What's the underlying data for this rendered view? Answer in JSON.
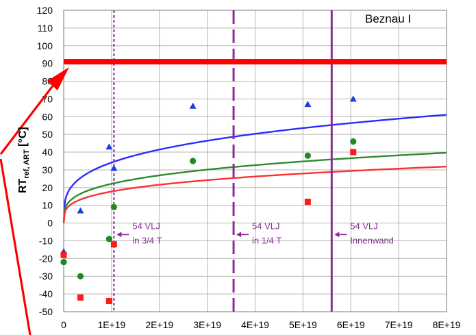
{
  "chart_data": {
    "type": "scatter",
    "title": "",
    "plant_label": "Beznau I",
    "ylabel_main": "RT",
    "ylabel_sub": "ref, ART",
    "ylabel_unit": " [°C]",
    "xlabel": "",
    "xlim": [
      0,
      8e+19
    ],
    "ylim": [
      -50,
      120
    ],
    "grid": true,
    "x_ticks": [
      "0",
      "1E+19",
      "2E+19",
      "3E+19",
      "4E+19",
      "5E+19",
      "6E+19",
      "7E+19",
      "8E+19"
    ],
    "y_ticks": [
      120,
      110,
      100,
      90,
      80,
      70,
      60,
      50,
      40,
      30,
      20,
      10,
      0,
      -10,
      -20,
      -30,
      -40,
      -50
    ],
    "limit_line": {
      "y": 91,
      "color": "#ff0000"
    },
    "curves": [
      {
        "color": "#2b2bff",
        "coef": 9.4,
        "exp": 0.28
      },
      {
        "color": "#2e8b2e",
        "coef": 6.1,
        "exp": 0.28
      },
      {
        "color": "#ff3030",
        "coef": 4.9,
        "exp": 0.28
      }
    ],
    "series": [
      {
        "marker": "triangle",
        "color": "#1a3fe0",
        "x": [
          0.0,
          3.5e+18,
          9.5e+18,
          1.05e+19,
          2.7e+19,
          5.1e+19,
          6.05e+19
        ],
        "y": [
          -16,
          7,
          43,
          31,
          66,
          67,
          70
        ]
      },
      {
        "marker": "circle",
        "color": "#1f8a1f",
        "x": [
          0.0,
          3.5e+18,
          9.5e+18,
          1.05e+19,
          2.7e+19,
          5.1e+19,
          6.05e+19
        ],
        "y": [
          -22,
          -30,
          -9,
          9,
          35,
          38,
          46
        ]
      },
      {
        "marker": "square",
        "color": "#ff1a1a",
        "x": [
          0.0,
          3.5e+18,
          9.5e+18,
          1.05e+19,
          5.1e+19,
          6.05e+19
        ],
        "y": [
          -18,
          -42,
          -44,
          -12,
          12,
          40
        ]
      }
    ],
    "vlines": [
      {
        "x": 1.05e+19,
        "style": "dotted",
        "label1": "54 VLJ",
        "label2": "in 3/4 T"
      },
      {
        "x": 3.55e+19,
        "style": "dashed",
        "label1": "54 VLJ",
        "label2": "in 1/4 T"
      },
      {
        "x": 5.6e+19,
        "style": "solid",
        "label1": "54 VLJ",
        "label2": "Innenwand"
      }
    ]
  }
}
